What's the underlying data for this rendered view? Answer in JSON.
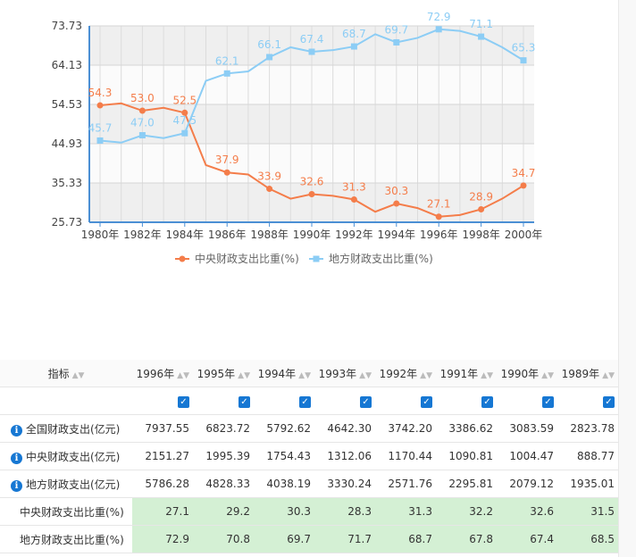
{
  "chart_data": {
    "type": "line",
    "x": [
      "1980年",
      "1981年",
      "1982年",
      "1983年",
      "1984年",
      "1985年",
      "1986年",
      "1987年",
      "1988年",
      "1989年",
      "1990年",
      "1991年",
      "1992年",
      "1993年",
      "1994年",
      "1995年",
      "1996年",
      "1997年",
      "1998年",
      "1999年",
      "2000年"
    ],
    "xticks": [
      "1980年",
      "1982年",
      "1984年",
      "1986年",
      "1988年",
      "1990年",
      "1992年",
      "1994年",
      "1996年",
      "1998年",
      "2000年"
    ],
    "yticks": [
      "73.73",
      "64.13",
      "54.53",
      "44.93",
      "35.33",
      "25.73"
    ],
    "ylim": [
      25.73,
      73.73
    ],
    "series": [
      {
        "name": "中央财政支出比重(%)",
        "color": "#f47d4a",
        "marker": "circle",
        "values": [
          54.3,
          54.8,
          53.0,
          53.7,
          52.5,
          39.7,
          37.9,
          37.4,
          33.9,
          31.5,
          32.6,
          32.2,
          31.3,
          28.3,
          30.3,
          29.2,
          27.1,
          27.5,
          28.9,
          31.5,
          34.7
        ]
      },
      {
        "name": "地方财政支出比重(%)",
        "color": "#8ccdf5",
        "marker": "square",
        "values": [
          45.7,
          45.2,
          47.0,
          46.3,
          47.5,
          60.3,
          62.1,
          62.6,
          66.1,
          68.5,
          67.4,
          67.8,
          68.7,
          71.7,
          69.7,
          70.8,
          72.9,
          72.5,
          71.1,
          68.5,
          65.3
        ]
      }
    ],
    "labels": {
      "central": [
        "54.3",
        "",
        "53.0",
        "",
        "52.5",
        "",
        "37.9",
        "",
        "33.9",
        "",
        "32.6",
        "",
        "31.3",
        "",
        "30.3",
        "",
        "27.1",
        "",
        "28.9",
        "",
        "34.7"
      ],
      "local": [
        "45.7",
        "",
        "47.0",
        "",
        "47.5",
        "",
        "62.1",
        "",
        "66.1",
        "",
        "67.4",
        "",
        "68.7",
        "",
        "69.7",
        "",
        "72.9",
        "",
        "71.1",
        "",
        "65.3"
      ]
    },
    "legend_position": "bottom"
  },
  "table": {
    "indicator_header": "指标",
    "years": [
      "1996年",
      "1995年",
      "1994年",
      "1993年",
      "1992年",
      "1991年",
      "1990年",
      "1989年"
    ],
    "rows": [
      {
        "label": "全国财政支出(亿元)",
        "info": true,
        "values": [
          "7937.55",
          "6823.72",
          "5792.62",
          "4642.30",
          "3742.20",
          "3386.62",
          "3083.59",
          "2823.78"
        ]
      },
      {
        "label": "中央财政支出(亿元)",
        "info": true,
        "values": [
          "2151.27",
          "1995.39",
          "1754.43",
          "1312.06",
          "1170.44",
          "1090.81",
          "1004.47",
          "888.77"
        ]
      },
      {
        "label": "地方财政支出(亿元)",
        "info": true,
        "values": [
          "5786.28",
          "4828.33",
          "4038.19",
          "3330.24",
          "2571.76",
          "2295.81",
          "2079.12",
          "1935.01"
        ]
      },
      {
        "label": "中央财政支出比重(%)",
        "info": false,
        "values": [
          "27.1",
          "29.2",
          "30.3",
          "28.3",
          "31.3",
          "32.2",
          "32.6",
          "31.5"
        ]
      },
      {
        "label": "地方财政支出比重(%)",
        "info": false,
        "values": [
          "72.9",
          "70.8",
          "69.7",
          "71.7",
          "68.7",
          "67.8",
          "67.4",
          "68.5"
        ]
      }
    ]
  },
  "icons": {
    "info": "info-icon",
    "sort": "sort-icon",
    "checkbox": "checkbox-checked-icon"
  }
}
